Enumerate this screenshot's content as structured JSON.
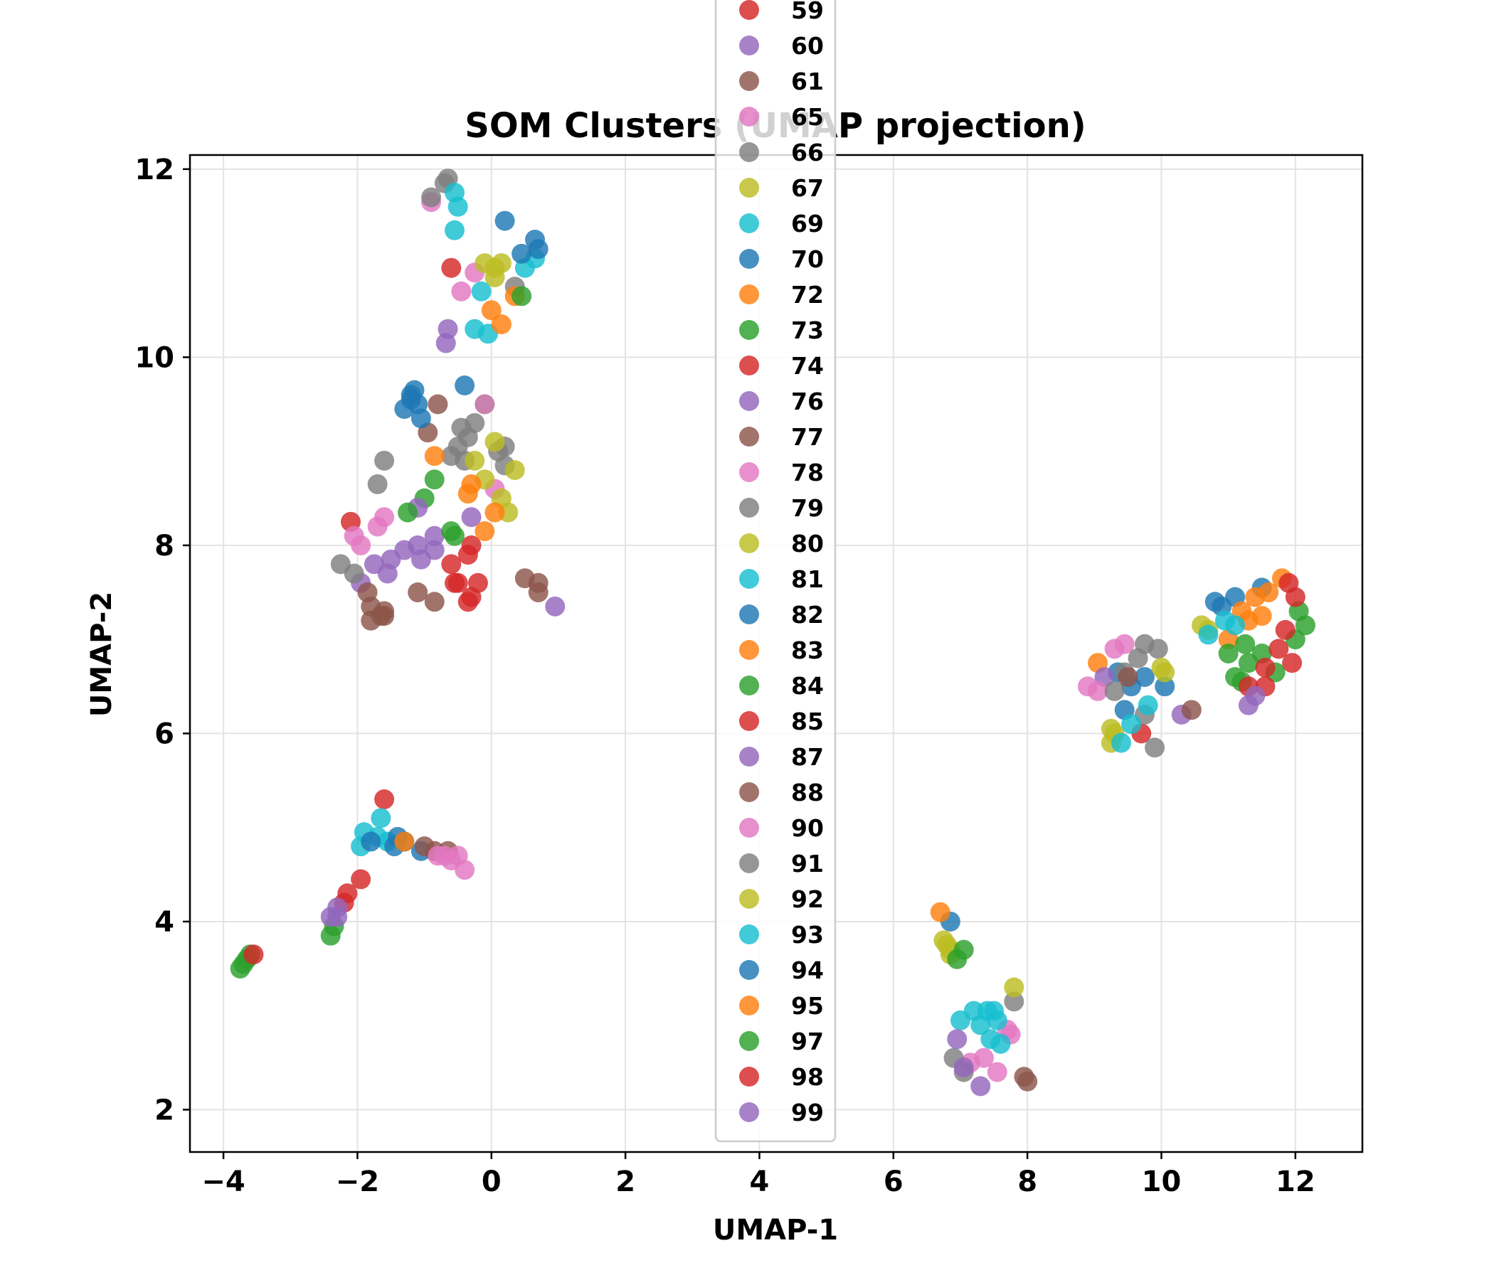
{
  "chart_data": {
    "type": "scatter",
    "title": "SOM Clusters (UMAP projection)",
    "xlabel": "UMAP-1",
    "ylabel": "UMAP-2",
    "xlim": [
      -4.5,
      13.0
    ],
    "ylim": [
      1.55,
      12.15
    ],
    "xticks": [
      -4,
      -2,
      0,
      2,
      4,
      6,
      8,
      10,
      12
    ],
    "xtick_labels": [
      "−4",
      "−2",
      "0",
      "2",
      "4",
      "6",
      "8",
      "10",
      "12"
    ],
    "yticks": [
      2,
      4,
      6,
      8,
      10,
      12
    ],
    "ytick_labels": [
      "2",
      "4",
      "6",
      "8",
      "10",
      "12"
    ],
    "grid": true,
    "legend_position": "center, overlapping plot top",
    "series": [
      {
        "name": "59",
        "color": "#d62728",
        "points": [
          [
            -0.6,
            10.95
          ],
          [
            -1.6,
            5.3
          ]
        ]
      },
      {
        "name": "60",
        "color": "#9467bd",
        "points": [
          [
            -0.65,
            10.3
          ],
          [
            -0.68,
            10.15
          ]
        ]
      },
      {
        "name": "61",
        "color": "#8c564b",
        "points": [
          [
            -0.8,
            9.5
          ],
          [
            -0.95,
            9.2
          ]
        ]
      },
      {
        "name": "65",
        "color": "#e377c2",
        "points": [
          [
            -0.9,
            11.65
          ],
          [
            -0.45,
            10.7
          ],
          [
            -0.25,
            10.9
          ]
        ]
      },
      {
        "name": "66",
        "color": "#7f7f7f",
        "points": [
          [
            -0.9,
            11.7
          ],
          [
            -0.7,
            11.85
          ],
          [
            -0.65,
            11.9
          ],
          [
            0.35,
            10.75
          ]
        ]
      },
      {
        "name": "67",
        "color": "#bcbd22",
        "points": [
          [
            -0.1,
            11.0
          ],
          [
            0.05,
            10.95
          ],
          [
            0.15,
            11.0
          ],
          [
            0.05,
            10.85
          ]
        ]
      },
      {
        "name": "69",
        "color": "#17becf",
        "points": [
          [
            -0.55,
            11.75
          ],
          [
            -0.5,
            11.6
          ],
          [
            -0.55,
            11.35
          ],
          [
            -0.15,
            10.7
          ],
          [
            -0.25,
            10.3
          ],
          [
            -0.05,
            10.25
          ],
          [
            0.5,
            10.95
          ],
          [
            0.65,
            11.05
          ]
        ]
      },
      {
        "name": "70",
        "color": "#1f77b4",
        "points": [
          [
            0.2,
            11.45
          ],
          [
            0.65,
            11.25
          ],
          [
            0.45,
            11.1
          ],
          [
            0.7,
            11.15
          ],
          [
            -0.4,
            9.7
          ]
        ]
      },
      {
        "name": "72",
        "color": "#ff7f0e",
        "points": [
          [
            0.0,
            10.5
          ],
          [
            0.15,
            10.35
          ],
          [
            0.35,
            10.65
          ]
        ]
      },
      {
        "name": "73",
        "color": "#2ca02c",
        "points": [
          [
            0.45,
            10.65
          ],
          [
            -0.1,
            9.5
          ],
          [
            -1.0,
            8.5
          ],
          [
            -0.85,
            8.7
          ]
        ]
      },
      {
        "name": "74",
        "color": "#d62728",
        "points": [
          [
            -2.1,
            8.25
          ],
          [
            -0.3,
            8.0
          ],
          [
            -0.35,
            7.9
          ],
          [
            -0.6,
            7.8
          ],
          [
            -0.55,
            7.6
          ]
        ]
      },
      {
        "name": "76",
        "color": "#9467bd",
        "points": [
          [
            -1.75,
            7.8
          ],
          [
            -1.5,
            7.85
          ],
          [
            -1.3,
            7.95
          ],
          [
            -1.1,
            8.0
          ],
          [
            -1.05,
            7.85
          ],
          [
            -0.85,
            7.95
          ],
          [
            -1.55,
            7.7
          ],
          [
            -1.95,
            7.6
          ],
          [
            -1.1,
            8.4
          ],
          [
            -0.85,
            8.1
          ],
          [
            -0.3,
            8.3
          ],
          [
            0.95,
            7.35
          ]
        ]
      },
      {
        "name": "77",
        "color": "#8c564b",
        "points": [
          [
            -1.85,
            7.5
          ],
          [
            -1.8,
            7.35
          ],
          [
            -1.65,
            7.25
          ],
          [
            -1.8,
            7.2
          ],
          [
            -1.1,
            7.5
          ],
          [
            -0.85,
            7.4
          ],
          [
            0.5,
            7.65
          ],
          [
            0.7,
            7.6
          ],
          [
            0.7,
            7.5
          ]
        ]
      },
      {
        "name": "78",
        "color": "#e377c2",
        "points": [
          [
            -2.05,
            8.1
          ],
          [
            -1.95,
            8.0
          ],
          [
            -1.7,
            8.2
          ],
          [
            -1.6,
            8.3
          ],
          [
            -0.1,
            9.5
          ],
          [
            0.05,
            8.6
          ]
        ]
      },
      {
        "name": "79",
        "color": "#7f7f7f",
        "points": [
          [
            -1.6,
            8.9
          ],
          [
            -1.7,
            8.65
          ],
          [
            -2.25,
            7.8
          ],
          [
            -2.05,
            7.7
          ],
          [
            -0.45,
            9.25
          ],
          [
            -0.25,
            9.3
          ],
          [
            -0.35,
            9.15
          ],
          [
            -0.5,
            9.05
          ],
          [
            -0.6,
            8.95
          ],
          [
            -0.4,
            8.9
          ],
          [
            0.1,
            9.0
          ],
          [
            0.2,
            9.05
          ],
          [
            0.2,
            8.85
          ]
        ]
      },
      {
        "name": "80",
        "color": "#bcbd22",
        "points": [
          [
            0.05,
            9.1
          ],
          [
            -0.25,
            8.9
          ],
          [
            -0.1,
            8.7
          ],
          [
            0.35,
            8.8
          ],
          [
            0.15,
            8.5
          ],
          [
            0.25,
            8.35
          ]
        ]
      },
      {
        "name": "81",
        "color": "#17becf",
        "points": [
          [
            -1.9,
            4.95
          ],
          [
            -1.95,
            4.8
          ],
          [
            -1.65,
            5.1
          ],
          [
            -1.7,
            4.9
          ],
          [
            -1.55,
            4.85
          ]
        ]
      },
      {
        "name": "82",
        "color": "#1f77b4",
        "points": [
          [
            -1.2,
            9.6
          ],
          [
            -1.15,
            9.65
          ],
          [
            -1.2,
            9.55
          ],
          [
            -1.1,
            9.5
          ],
          [
            -1.3,
            9.45
          ],
          [
            -1.05,
            9.35
          ],
          [
            -1.8,
            4.85
          ],
          [
            -1.45,
            4.8
          ],
          [
            -1.3,
            4.85
          ],
          [
            -1.05,
            4.75
          ],
          [
            -1.4,
            4.9
          ]
        ]
      },
      {
        "name": "83",
        "color": "#ff7f0e",
        "points": [
          [
            -0.85,
            8.95
          ],
          [
            -0.3,
            8.65
          ],
          [
            -0.35,
            8.55
          ],
          [
            0.05,
            8.35
          ],
          [
            -0.1,
            8.15
          ],
          [
            -1.3,
            4.85
          ]
        ]
      },
      {
        "name": "84",
        "color": "#2ca02c",
        "points": [
          [
            -1.25,
            8.35
          ],
          [
            -0.6,
            8.15
          ],
          [
            -0.55,
            8.1
          ],
          [
            -3.7,
            3.55
          ],
          [
            -3.65,
            3.6
          ],
          [
            -3.6,
            3.65
          ],
          [
            -3.75,
            3.5
          ],
          [
            -2.4,
            3.85
          ],
          [
            -2.35,
            3.95
          ]
        ]
      },
      {
        "name": "85",
        "color": "#d62728",
        "points": [
          [
            -0.5,
            7.6
          ],
          [
            -0.3,
            7.45
          ],
          [
            -0.35,
            7.4
          ],
          [
            -0.2,
            7.6
          ],
          [
            -1.95,
            4.45
          ],
          [
            -2.15,
            4.3
          ],
          [
            -2.2,
            4.2
          ],
          [
            -3.55,
            3.65
          ]
        ]
      },
      {
        "name": "87",
        "color": "#9467bd",
        "points": [
          [
            -2.3,
            4.15
          ],
          [
            -2.4,
            4.05
          ],
          [
            -2.3,
            4.05
          ]
        ]
      },
      {
        "name": "88",
        "color": "#8c564b",
        "points": [
          [
            -1.6,
            7.3
          ],
          [
            -1.6,
            7.25
          ],
          [
            -1.0,
            4.8
          ],
          [
            -0.65,
            4.75
          ],
          [
            -0.85,
            4.75
          ],
          [
            7.95,
            2.35
          ],
          [
            8.0,
            2.3
          ]
        ]
      },
      {
        "name": "90",
        "color": "#e377c2",
        "points": [
          [
            -0.8,
            4.7
          ],
          [
            -0.6,
            4.65
          ],
          [
            -0.5,
            4.7
          ],
          [
            -0.4,
            4.55
          ],
          [
            -0.7,
            4.7
          ],
          [
            7.15,
            2.5
          ],
          [
            7.35,
            2.55
          ],
          [
            7.55,
            2.4
          ],
          [
            7.75,
            2.8
          ],
          [
            7.7,
            2.85
          ]
        ]
      },
      {
        "name": "91",
        "color": "#7f7f7f",
        "points": [
          [
            6.9,
            2.55
          ],
          [
            7.05,
            2.4
          ],
          [
            7.8,
            3.15
          ]
        ]
      },
      {
        "name": "92",
        "color": "#bcbd22",
        "points": [
          [
            6.75,
            3.8
          ],
          [
            6.8,
            3.75
          ],
          [
            6.85,
            3.7
          ],
          [
            6.85,
            3.65
          ],
          [
            7.8,
            3.3
          ]
        ]
      },
      {
        "name": "93",
        "color": "#17becf",
        "points": [
          [
            7.0,
            2.95
          ],
          [
            7.2,
            3.05
          ],
          [
            7.4,
            3.05
          ],
          [
            7.5,
            3.05
          ],
          [
            7.45,
            2.75
          ],
          [
            7.6,
            2.7
          ],
          [
            7.55,
            2.95
          ],
          [
            7.3,
            2.9
          ]
        ]
      },
      {
        "name": "94",
        "color": "#1f77b4",
        "points": [
          [
            6.85,
            4.0
          ],
          [
            10.8,
            7.4
          ],
          [
            10.9,
            7.35
          ],
          [
            11.1,
            7.45
          ],
          [
            11.5,
            7.55
          ],
          [
            9.35,
            6.65
          ],
          [
            9.55,
            6.5
          ],
          [
            9.75,
            6.6
          ],
          [
            10.05,
            6.5
          ],
          [
            9.45,
            6.25
          ]
        ]
      },
      {
        "name": "95",
        "color": "#ff7f0e",
        "points": [
          [
            6.7,
            4.1
          ],
          [
            9.05,
            6.75
          ],
          [
            11.2,
            7.3
          ],
          [
            11.4,
            7.45
          ],
          [
            11.6,
            7.5
          ],
          [
            11.8,
            7.65
          ],
          [
            11.3,
            7.2
          ],
          [
            11.5,
            7.25
          ],
          [
            11.0,
            7.0
          ]
        ]
      },
      {
        "name": "97",
        "color": "#2ca02c",
        "points": [
          [
            6.95,
            3.6
          ],
          [
            7.05,
            3.7
          ],
          [
            11.0,
            6.85
          ],
          [
            11.1,
            6.6
          ],
          [
            11.3,
            6.75
          ],
          [
            11.5,
            6.85
          ],
          [
            11.7,
            6.65
          ],
          [
            11.25,
            6.95
          ],
          [
            12.05,
            7.3
          ],
          [
            12.15,
            7.15
          ],
          [
            12.0,
            7.0
          ],
          [
            11.2,
            6.55
          ]
        ]
      },
      {
        "name": "98",
        "color": "#d62728",
        "points": [
          [
            11.9,
            7.6
          ],
          [
            12.0,
            7.45
          ],
          [
            11.75,
            6.9
          ],
          [
            11.85,
            7.1
          ],
          [
            11.95,
            6.75
          ],
          [
            11.55,
            6.7
          ],
          [
            11.3,
            6.5
          ],
          [
            11.55,
            6.5
          ],
          [
            9.7,
            6.0
          ]
        ]
      },
      {
        "name": "99",
        "color": "#9467bd",
        "points": [
          [
            7.05,
            2.45
          ],
          [
            7.3,
            2.25
          ],
          [
            6.95,
            2.75
          ],
          [
            10.3,
            6.2
          ],
          [
            11.3,
            6.3
          ],
          [
            11.4,
            6.4
          ],
          [
            9.15,
            6.6
          ]
        ]
      },
      {
        "name": "",
        "color": "#e377c2",
        "points": [
          [
            9.3,
            6.9
          ],
          [
            9.45,
            6.95
          ],
          [
            8.9,
            6.5
          ],
          [
            9.05,
            6.45
          ]
        ]
      },
      {
        "name": "",
        "color": "#7f7f7f",
        "points": [
          [
            9.3,
            6.45
          ],
          [
            9.45,
            6.65
          ],
          [
            9.65,
            6.8
          ],
          [
            9.75,
            6.95
          ],
          [
            9.95,
            6.9
          ],
          [
            9.9,
            5.85
          ],
          [
            9.75,
            6.2
          ]
        ]
      },
      {
        "name": "",
        "color": "#bcbd22",
        "points": [
          [
            9.25,
            6.05
          ],
          [
            9.25,
            5.9
          ],
          [
            9.3,
            6.0
          ],
          [
            10.0,
            6.7
          ],
          [
            10.05,
            6.65
          ],
          [
            10.6,
            7.15
          ],
          [
            10.7,
            7.1
          ]
        ]
      },
      {
        "name": "",
        "color": "#17becf",
        "points": [
          [
            9.4,
            5.9
          ],
          [
            9.55,
            6.1
          ],
          [
            9.8,
            6.3
          ],
          [
            10.95,
            7.2
          ],
          [
            11.1,
            7.15
          ],
          [
            10.7,
            7.05
          ]
        ]
      },
      {
        "name": "",
        "color": "#8c564b",
        "points": [
          [
            10.45,
            6.25
          ],
          [
            9.5,
            6.6
          ]
        ]
      }
    ]
  }
}
